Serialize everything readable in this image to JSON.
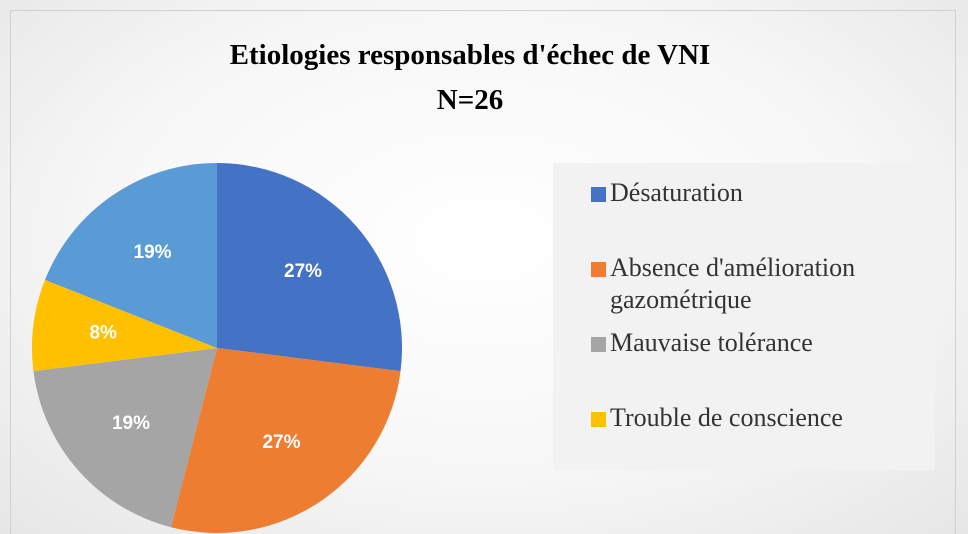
{
  "chart_data": {
    "type": "pie",
    "title": "Etiologies responsables d'échec de VNI",
    "subtitle": "N=26",
    "categories": [
      "Désaturation",
      "Absence d'amélioration gazométrique",
      "Mauvaise tolérance",
      "Trouble de conscience",
      null
    ],
    "values": [
      27,
      27,
      19,
      8,
      19
    ],
    "value_labels": [
      "27%",
      "27%",
      "19%",
      "8%",
      "19%"
    ],
    "colors": [
      "#4472c4",
      "#ed7d31",
      "#a5a5a5",
      "#ffc000",
      "#5b9bd5"
    ],
    "legend": "right"
  }
}
